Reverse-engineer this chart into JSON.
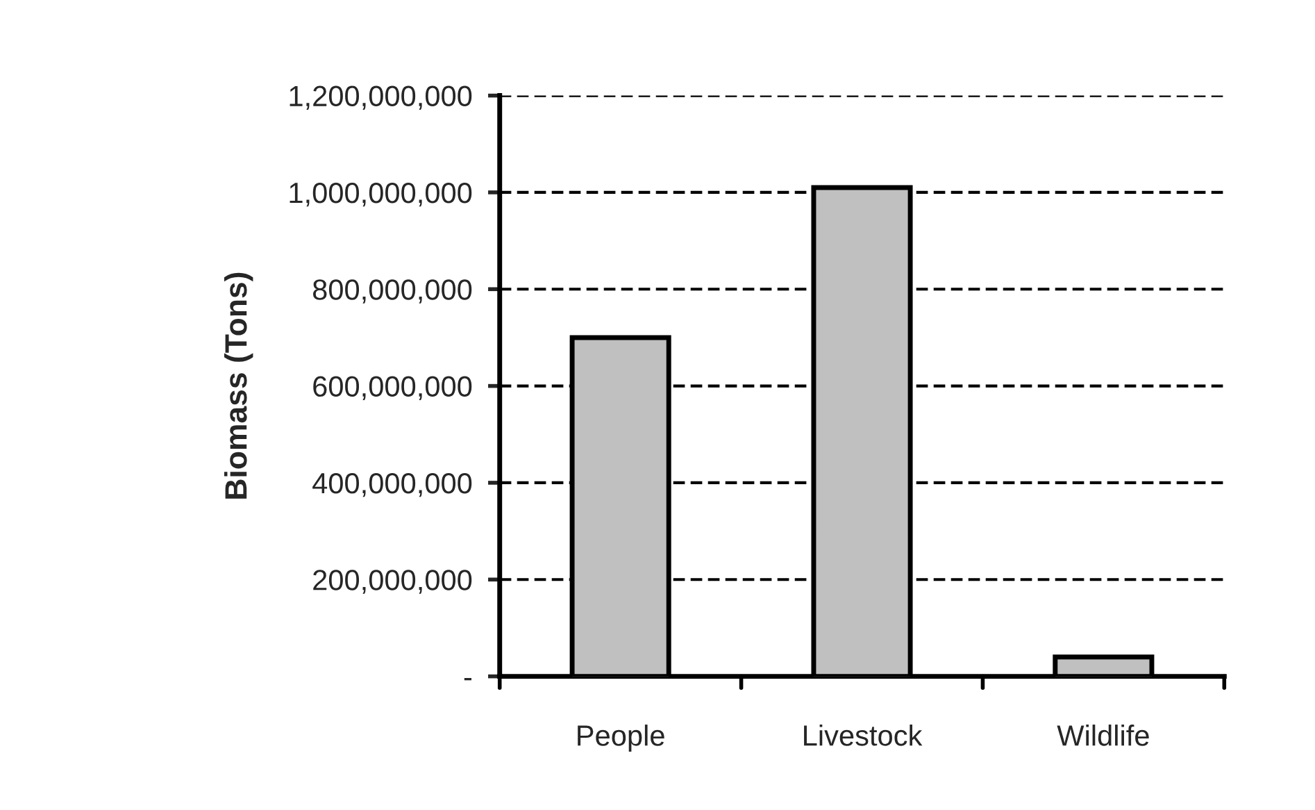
{
  "chart_data": {
    "type": "bar",
    "categories": [
      "People",
      "Livestock",
      "Wildlife"
    ],
    "values": [
      700000000,
      1010000000,
      40000000
    ],
    "color": "#c0c0c0",
    "ylabel": "Biomass (Tons)",
    "ylim": [
      0,
      1200000000
    ],
    "yticks": [
      {
        "value": 0,
        "label": "-"
      },
      {
        "value": 200000000,
        "label": "200,000,000"
      },
      {
        "value": 400000000,
        "label": "400,000,000"
      },
      {
        "value": 600000000,
        "label": "600,000,000"
      },
      {
        "value": 800000000,
        "label": "800,000,000"
      },
      {
        "value": 1000000000,
        "label": "1,000,000,000"
      },
      {
        "value": 1200000000,
        "label": "1,200,000,000"
      }
    ],
    "grid": "y",
    "legend": false
  }
}
